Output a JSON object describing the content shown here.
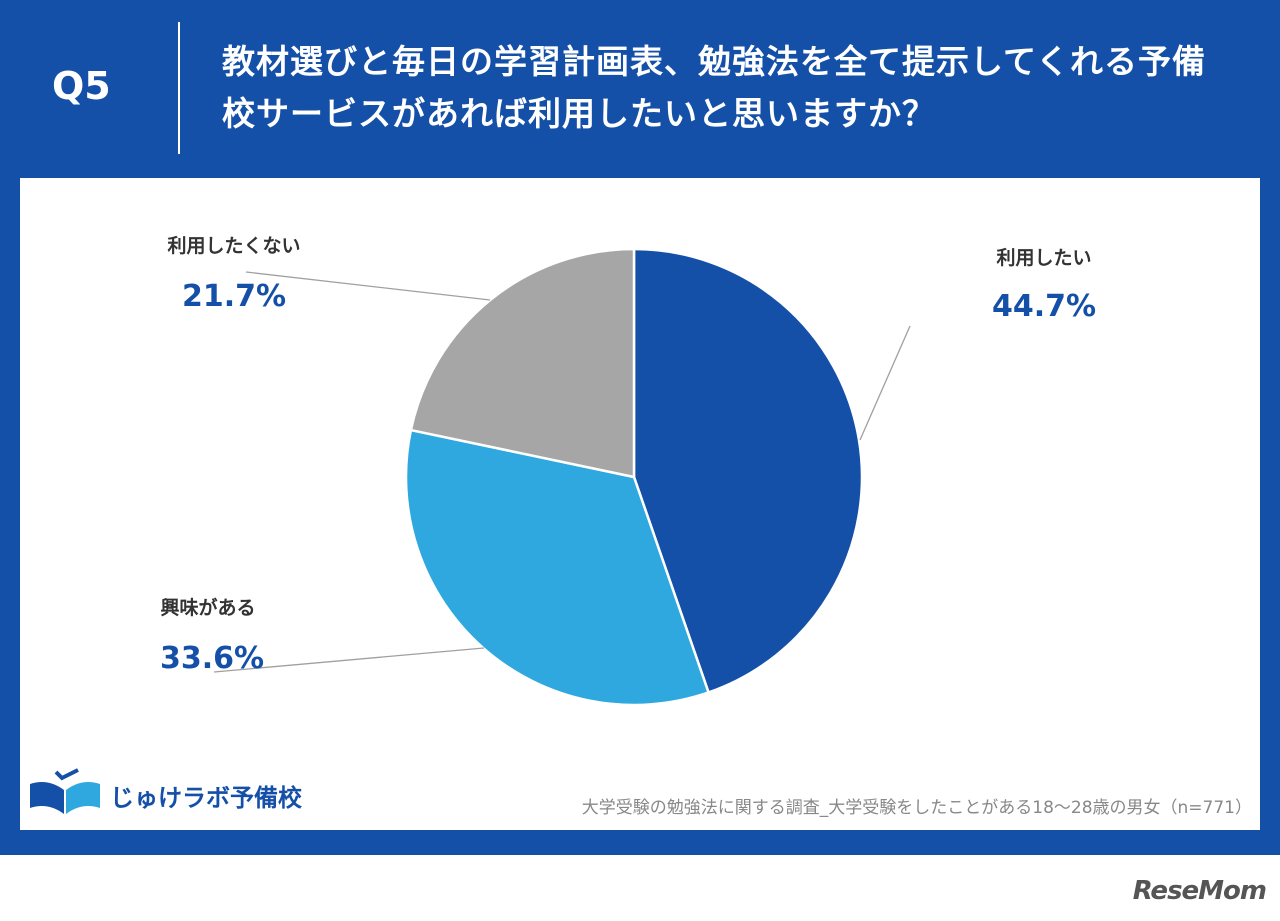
{
  "header": {
    "question_no": "Q5",
    "title": "教材選びと毎日の学習計画表、勉強法を全て提示してくれる予備校サービスがあれば利用したいと思いますか？"
  },
  "chart_data": {
    "type": "pie",
    "start_angle_deg": 0,
    "direction": "clockwise",
    "slices": [
      {
        "label": "利用したい",
        "value": 44.7,
        "value_label": "44.7%",
        "color": "#1550a8"
      },
      {
        "label": "興味がある",
        "value": 33.6,
        "value_label": "33.6%",
        "color": "#2fa8e0"
      },
      {
        "label": "利用したくない",
        "value": 21.7,
        "value_label": "21.7%",
        "color": "#a6a6a6"
      }
    ]
  },
  "footer": {
    "logo_text": "じゅけラボ予備校",
    "source": "大学受験の勉強法に関する調査_大学受験をしたことがある18～28歳の男女（n=771）",
    "watermark": "ReseMom"
  }
}
